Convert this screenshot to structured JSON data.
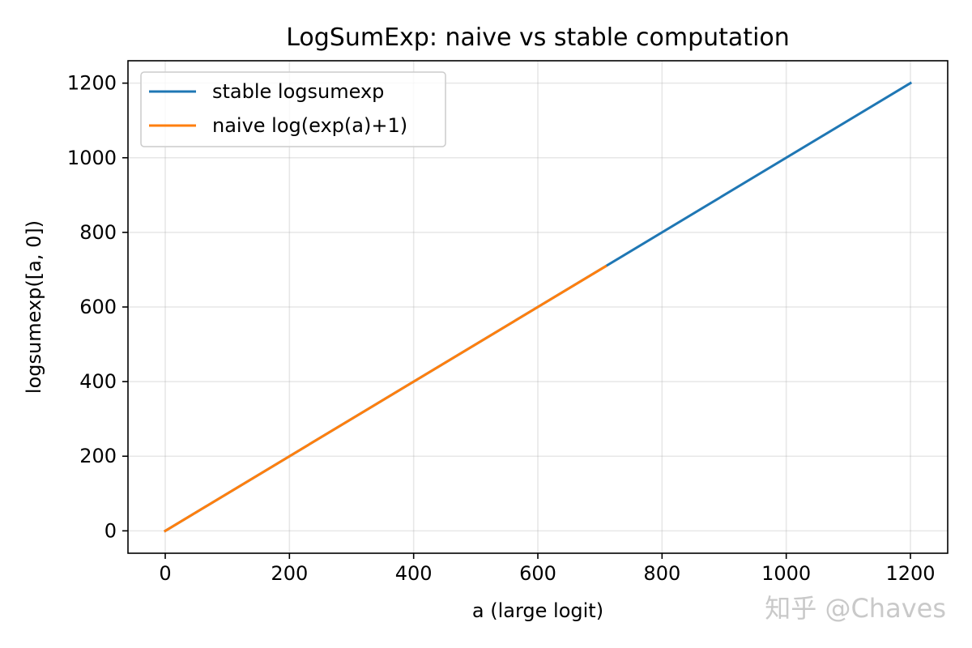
{
  "chart_data": {
    "type": "line",
    "title": "LogSumExp: naive vs stable computation",
    "xlabel": "a (large logit)",
    "ylabel": "logsumexp([a, 0])",
    "xlim": [
      -60,
      1260
    ],
    "ylim": [
      -60,
      1260
    ],
    "xticks": [
      0,
      200,
      400,
      600,
      800,
      1000,
      1200
    ],
    "yticks": [
      0,
      200,
      400,
      600,
      800,
      1000,
      1200
    ],
    "grid": true,
    "legend_position": "upper-left",
    "series": [
      {
        "name": "stable logsumexp",
        "color": "#1f77b4",
        "x": [
          0,
          1200
        ],
        "y": [
          0,
          1200
        ]
      },
      {
        "name": "naive log(exp(a)+1)",
        "color": "#ff7f0e",
        "x": [
          0,
          709
        ],
        "y": [
          0,
          709
        ]
      }
    ]
  },
  "watermark": "知乎 @Chaves"
}
